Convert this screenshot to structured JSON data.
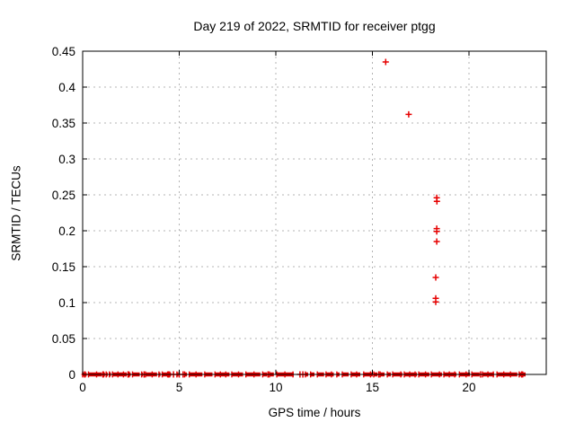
{
  "figure": {
    "background": "#ffffff"
  },
  "chart_data": {
    "type": "scatter",
    "title": "Day 219 of 2022, SRMTID for receiver ptgg",
    "xlabel": "GPS time / hours",
    "ylabel": "SRMTID / TECUs",
    "xlim": [
      0,
      24
    ],
    "ylim": [
      0,
      0.45
    ],
    "xticks": [
      [
        0,
        "0"
      ],
      [
        5,
        "5"
      ],
      [
        10,
        "10"
      ],
      [
        15,
        "15"
      ],
      [
        20,
        "20"
      ]
    ],
    "yticks": [
      [
        0,
        "0"
      ],
      [
        0.05,
        "0.05"
      ],
      [
        0.1,
        "0.1"
      ],
      [
        0.15,
        "0.15"
      ],
      [
        0.2,
        "0.2"
      ],
      [
        0.25,
        "0.25"
      ],
      [
        0.3,
        "0.3"
      ],
      [
        0.35,
        "0.35"
      ],
      [
        0.4,
        "0.4"
      ],
      [
        0.45,
        "0.45"
      ]
    ],
    "grid": true,
    "grid_style": "dotted",
    "marker": "plus",
    "colors": {
      "marker": "#e60000",
      "grid": "#b4b4b4",
      "axis": "#000000",
      "text": "#000000"
    },
    "outlier_points": [
      [
        15.69,
        0.435
      ],
      [
        16.88,
        0.362
      ],
      [
        18.33,
        0.246
      ],
      [
        18.34,
        0.241
      ],
      [
        18.33,
        0.203
      ],
      [
        18.33,
        0.199
      ],
      [
        18.33,
        0.185
      ],
      [
        18.28,
        0.135
      ],
      [
        18.28,
        0.106
      ],
      [
        18.28,
        0.101
      ]
    ],
    "zero_band": {
      "y": 0,
      "segments": [
        [
          0.0,
          0.07
        ],
        [
          0.13,
          0.2
        ],
        [
          0.3,
          1.0
        ],
        [
          1.08,
          1.15
        ],
        [
          1.22,
          1.3
        ],
        [
          1.38,
          1.46
        ],
        [
          1.55,
          2.28
        ],
        [
          2.4,
          2.48
        ],
        [
          2.58,
          2.95
        ],
        [
          3.05,
          3.12
        ],
        [
          3.25,
          3.85
        ],
        [
          3.95,
          4.03
        ],
        [
          4.12,
          4.4
        ],
        [
          4.5,
          4.57
        ],
        [
          4.88,
          4.95
        ],
        [
          5.28,
          5.4
        ],
        [
          5.52,
          6.2
        ],
        [
          6.32,
          6.72
        ],
        [
          6.85,
          7.6
        ],
        [
          7.72,
          8.3
        ],
        [
          8.45,
          9.2
        ],
        [
          9.32,
          9.55
        ],
        [
          9.67,
          9.9
        ],
        [
          10.05,
          10.93
        ],
        [
          11.53,
          11.67
        ],
        [
          11.8,
          12.0
        ],
        [
          12.15,
          12.5
        ],
        [
          12.6,
          13.0
        ],
        [
          13.16,
          13.3
        ],
        [
          13.44,
          13.77
        ],
        [
          13.9,
          14.37
        ],
        [
          14.55,
          15.02
        ],
        [
          15.07,
          15.26
        ],
        [
          15.4,
          15.63
        ],
        [
          15.77,
          15.95
        ],
        [
          16.05,
          16.55
        ],
        [
          16.65,
          17.3
        ],
        [
          17.4,
          17.95
        ],
        [
          18.05,
          18.6
        ],
        [
          18.7,
          19.35
        ],
        [
          19.5,
          20.05
        ],
        [
          20.15,
          20.55
        ],
        [
          20.7,
          21.3
        ],
        [
          21.45,
          22.5
        ],
        [
          22.6,
          22.7
        ],
        [
          22.78,
          22.93
        ]
      ],
      "isolated_points": [
        0.1,
        1.05,
        2.35,
        3.18,
        4.45,
        4.7,
        5.0,
        5.2,
        9.6,
        11.25,
        11.4,
        15.33,
        20.6,
        22.73
      ]
    }
  }
}
